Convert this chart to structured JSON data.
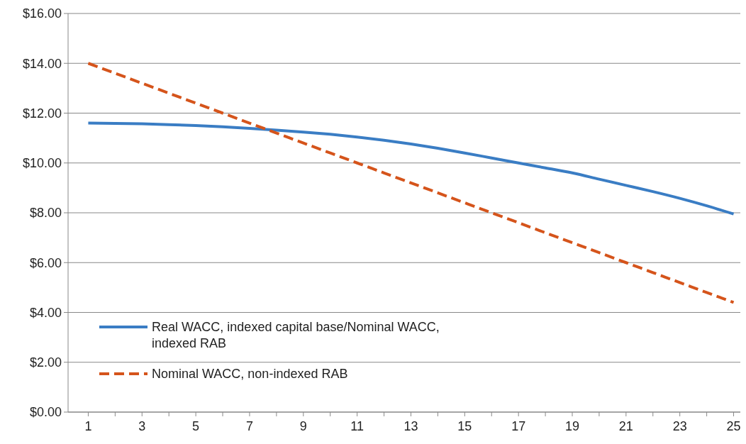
{
  "chart_data": {
    "type": "line",
    "x": [
      1,
      2,
      3,
      4,
      5,
      6,
      7,
      8,
      9,
      10,
      11,
      12,
      13,
      14,
      15,
      16,
      17,
      18,
      19,
      20,
      21,
      22,
      23,
      24,
      25
    ],
    "series": [
      {
        "name": "Real WACC, indexed capital base/Nominal WACC, indexed RAB",
        "color": "#3a7dc4",
        "line_style": "solid",
        "values": [
          11.6,
          11.59,
          11.57,
          11.54,
          11.5,
          11.45,
          11.39,
          11.32,
          11.24,
          11.15,
          11.04,
          10.91,
          10.76,
          10.59,
          10.4,
          10.2,
          10.0,
          9.8,
          9.6,
          9.35,
          9.1,
          8.85,
          8.58,
          8.28,
          7.95
        ]
      },
      {
        "name": "Nominal WACC, non-indexed RAB",
        "color": "#d5541b",
        "line_style": "dashed",
        "values": [
          14,
          13.6,
          13.2,
          12.8,
          12.4,
          12.0,
          11.6,
          11.2,
          10.8,
          10.4,
          10.0,
          9.6,
          9.2,
          8.8,
          8.4,
          8.0,
          7.6,
          7.2,
          6.8,
          6.4,
          6.0,
          5.6,
          5.2,
          4.8,
          4.4
        ]
      }
    ],
    "xlim": [
      0.25,
      25.25
    ],
    "xticks": [
      1,
      {
        "value": 2,
        "label": null
      },
      3,
      {
        "value": 4,
        "label": null
      },
      5,
      {
        "value": 6,
        "label": null
      },
      7,
      {
        "value": 8,
        "label": null
      },
      9,
      {
        "value": 10,
        "label": null
      },
      11,
      {
        "value": 12,
        "label": null
      },
      13,
      {
        "value": 14,
        "label": null
      },
      15,
      {
        "value": 16,
        "label": null
      },
      17,
      {
        "value": 18,
        "label": null
      },
      19,
      {
        "value": 20,
        "label": null
      },
      21,
      {
        "value": 22,
        "label": null
      },
      23,
      {
        "value": 24,
        "label": null
      },
      25
    ],
    "ylim": [
      0,
      16
    ],
    "yticks": [
      {
        "value": 0,
        "label": "$0.00"
      },
      {
        "value": 2,
        "label": "$2.00"
      },
      {
        "value": 4,
        "label": "$4.00"
      },
      {
        "value": 6,
        "label": "$6.00"
      },
      {
        "value": 8,
        "label": "$8.00"
      },
      {
        "value": 10,
        "label": "$10.00"
      },
      {
        "value": 12,
        "label": "$12.00"
      },
      {
        "value": 14,
        "label": "$14.00"
      },
      {
        "value": 16,
        "label": "$16.00"
      }
    ],
    "grid": "y",
    "legend": "bottom left",
    "marker": "none"
  }
}
